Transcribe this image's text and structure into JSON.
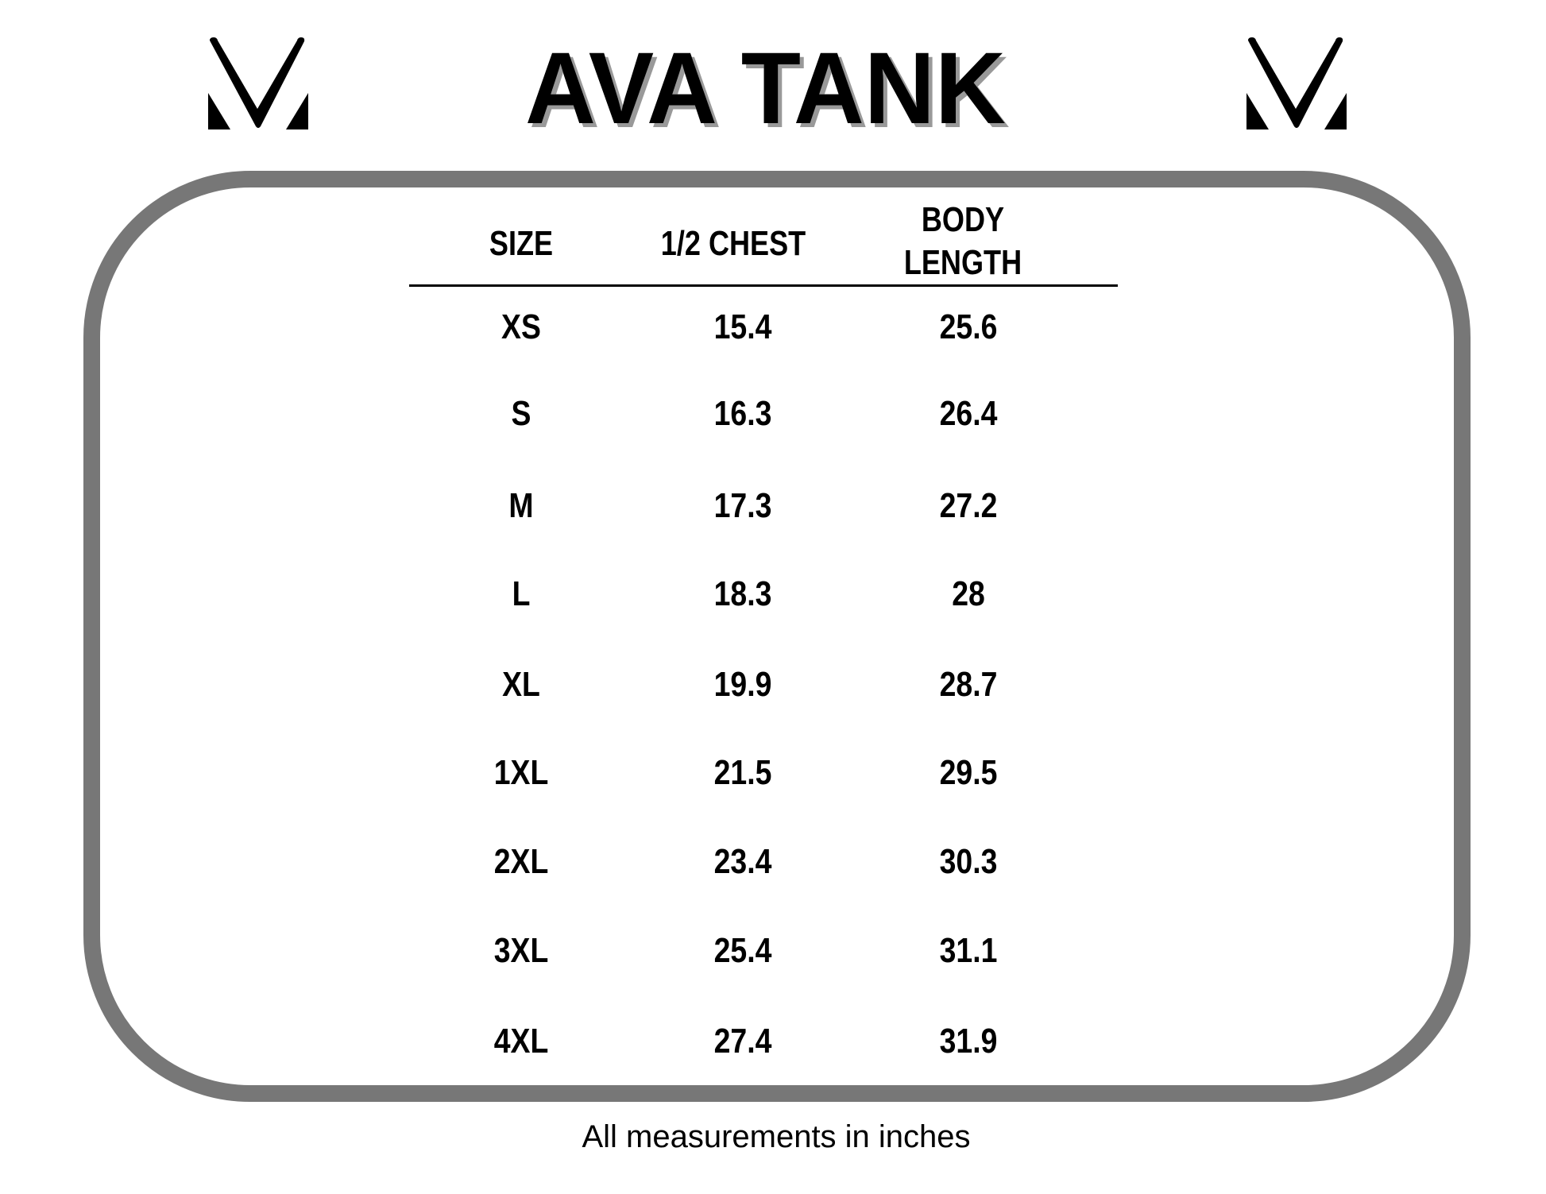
{
  "header": {
    "title": "AVA TANK",
    "logo_left": "brand-v-logo",
    "logo_right": "brand-v-logo"
  },
  "table": {
    "columns": [
      "SIZE",
      "1/2 CHEST",
      "BODY",
      "LENGTH"
    ],
    "column_labels": {
      "size": "SIZE",
      "chest": "1/2 CHEST",
      "body_line1": "BODY",
      "body_line2": "LENGTH"
    },
    "rows": [
      {
        "size": "XS",
        "chest": "15.4",
        "body": "25.6"
      },
      {
        "size": "S",
        "chest": "16.3",
        "body": "26.4"
      },
      {
        "size": "M",
        "chest": "17.3",
        "body": "27.2"
      },
      {
        "size": "L",
        "chest": "18.3",
        "body": "28"
      },
      {
        "size": "XL",
        "chest": "19.9",
        "body": "28.7"
      },
      {
        "size": "1XL",
        "chest": "21.5",
        "body": "29.5"
      },
      {
        "size": "2XL",
        "chest": "23.4",
        "body": "30.3"
      },
      {
        "size": "3XL",
        "chest": "25.4",
        "body": "31.1"
      },
      {
        "size": "4XL",
        "chest": "27.4",
        "body": "31.9"
      }
    ]
  },
  "footer": {
    "note": "All measurements in inches"
  },
  "colors": {
    "frame": "#777777",
    "text": "#000000",
    "title_shadow": "#999999"
  }
}
